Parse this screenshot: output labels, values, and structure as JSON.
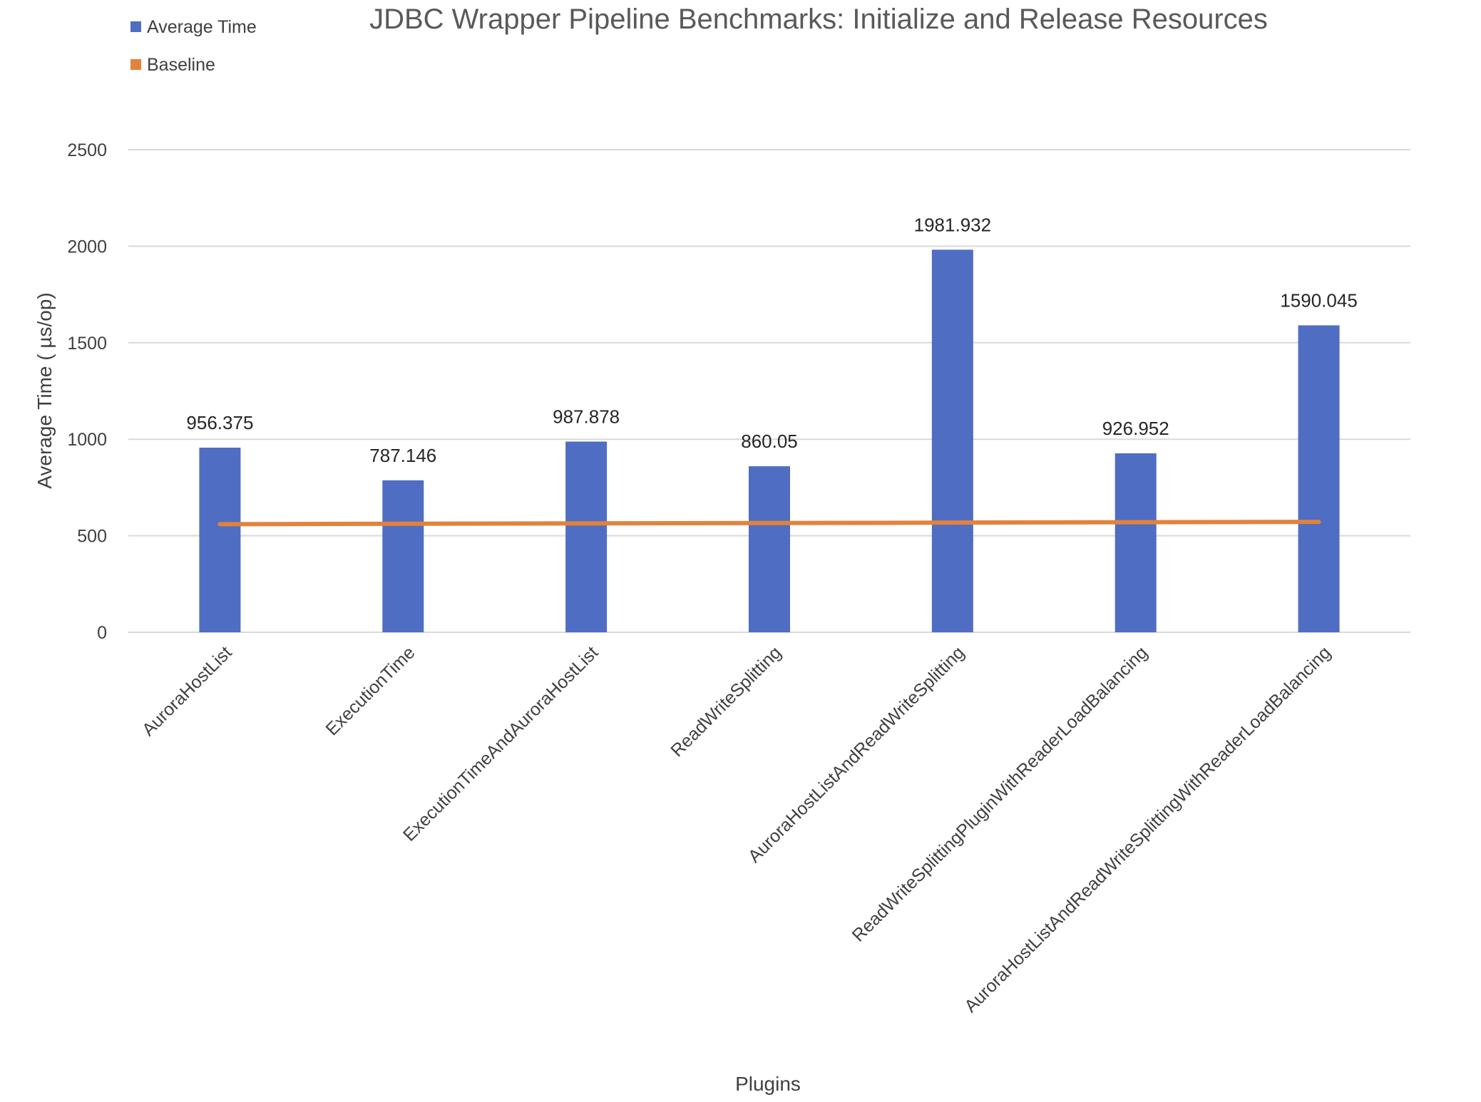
{
  "chart_data": {
    "type": "bar",
    "title": "JDBC Wrapper Pipeline Benchmarks: Initialize and Release Resources",
    "xlabel": "Plugins",
    "ylabel": "Average Time ( µs/op)",
    "ylim": [
      0,
      2500
    ],
    "yticks": [
      0,
      500,
      1000,
      1500,
      2000,
      2500
    ],
    "grid": true,
    "legend_position": "top-left",
    "categories": [
      "AuroraHostList",
      "ExecutionTime",
      "ExecutionTimeAndAuroraHostList",
      "ReadWriteSplitting",
      "AuroraHostListAndReadWriteSplitting",
      "ReadWriteSplittingPluginWithReaderLoadBalancing",
      "AuroraHostListAndReadWriteSplittingWithReaderLoadBalancing"
    ],
    "series": [
      {
        "name": "Average Time",
        "type": "bar",
        "color": "#4f6dc2",
        "values": [
          956.375,
          787.146,
          987.878,
          860.05,
          1981.932,
          926.952,
          1590.045
        ],
        "labels": [
          "956.375",
          "787.146",
          "987.878",
          "860.05",
          "1981.932",
          "926.952",
          "1590.045"
        ]
      },
      {
        "name": "Baseline",
        "type": "line",
        "color": "#e2823c",
        "values": [
          560,
          562,
          564,
          566,
          568,
          570,
          572
        ]
      }
    ]
  }
}
